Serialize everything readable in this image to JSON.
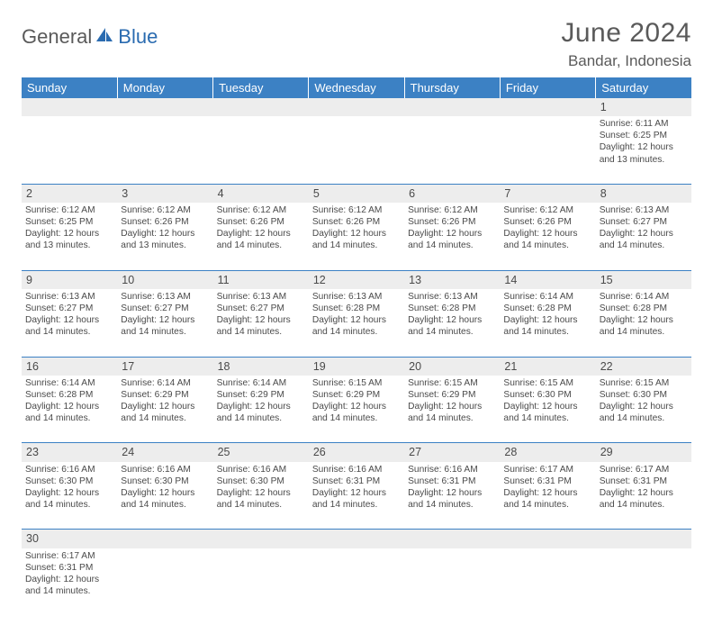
{
  "logo": {
    "part1": "General",
    "part2": "Blue"
  },
  "title": "June 2024",
  "location": "Bandar, Indonesia",
  "colors": {
    "header_bg": "#3c81c4",
    "header_text": "#ffffff",
    "daynum_bg": "#ededed",
    "text": "#4a4a4a",
    "logo_gray": "#5a5a5a",
    "logo_blue": "#2a6bb0",
    "row_divider": "#3c81c4",
    "page_bg": "#ffffff"
  },
  "typography": {
    "title_fontsize": 30,
    "location_fontsize": 17,
    "weekday_fontsize": 13,
    "daynum_fontsize": 12.5,
    "cell_fontsize": 10.2,
    "logo_fontsize": 22
  },
  "weekdays": [
    "Sunday",
    "Monday",
    "Tuesday",
    "Wednesday",
    "Thursday",
    "Friday",
    "Saturday"
  ],
  "weeks": [
    [
      null,
      null,
      null,
      null,
      null,
      null,
      {
        "n": "1",
        "sr": "Sunrise: 6:11 AM",
        "ss": "Sunset: 6:25 PM",
        "d1": "Daylight: 12 hours",
        "d2": "and 13 minutes."
      }
    ],
    [
      {
        "n": "2",
        "sr": "Sunrise: 6:12 AM",
        "ss": "Sunset: 6:25 PM",
        "d1": "Daylight: 12 hours",
        "d2": "and 13 minutes."
      },
      {
        "n": "3",
        "sr": "Sunrise: 6:12 AM",
        "ss": "Sunset: 6:26 PM",
        "d1": "Daylight: 12 hours",
        "d2": "and 13 minutes."
      },
      {
        "n": "4",
        "sr": "Sunrise: 6:12 AM",
        "ss": "Sunset: 6:26 PM",
        "d1": "Daylight: 12 hours",
        "d2": "and 14 minutes."
      },
      {
        "n": "5",
        "sr": "Sunrise: 6:12 AM",
        "ss": "Sunset: 6:26 PM",
        "d1": "Daylight: 12 hours",
        "d2": "and 14 minutes."
      },
      {
        "n": "6",
        "sr": "Sunrise: 6:12 AM",
        "ss": "Sunset: 6:26 PM",
        "d1": "Daylight: 12 hours",
        "d2": "and 14 minutes."
      },
      {
        "n": "7",
        "sr": "Sunrise: 6:12 AM",
        "ss": "Sunset: 6:26 PM",
        "d1": "Daylight: 12 hours",
        "d2": "and 14 minutes."
      },
      {
        "n": "8",
        "sr": "Sunrise: 6:13 AM",
        "ss": "Sunset: 6:27 PM",
        "d1": "Daylight: 12 hours",
        "d2": "and 14 minutes."
      }
    ],
    [
      {
        "n": "9",
        "sr": "Sunrise: 6:13 AM",
        "ss": "Sunset: 6:27 PM",
        "d1": "Daylight: 12 hours",
        "d2": "and 14 minutes."
      },
      {
        "n": "10",
        "sr": "Sunrise: 6:13 AM",
        "ss": "Sunset: 6:27 PM",
        "d1": "Daylight: 12 hours",
        "d2": "and 14 minutes."
      },
      {
        "n": "11",
        "sr": "Sunrise: 6:13 AM",
        "ss": "Sunset: 6:27 PM",
        "d1": "Daylight: 12 hours",
        "d2": "and 14 minutes."
      },
      {
        "n": "12",
        "sr": "Sunrise: 6:13 AM",
        "ss": "Sunset: 6:28 PM",
        "d1": "Daylight: 12 hours",
        "d2": "and 14 minutes."
      },
      {
        "n": "13",
        "sr": "Sunrise: 6:13 AM",
        "ss": "Sunset: 6:28 PM",
        "d1": "Daylight: 12 hours",
        "d2": "and 14 minutes."
      },
      {
        "n": "14",
        "sr": "Sunrise: 6:14 AM",
        "ss": "Sunset: 6:28 PM",
        "d1": "Daylight: 12 hours",
        "d2": "and 14 minutes."
      },
      {
        "n": "15",
        "sr": "Sunrise: 6:14 AM",
        "ss": "Sunset: 6:28 PM",
        "d1": "Daylight: 12 hours",
        "d2": "and 14 minutes."
      }
    ],
    [
      {
        "n": "16",
        "sr": "Sunrise: 6:14 AM",
        "ss": "Sunset: 6:28 PM",
        "d1": "Daylight: 12 hours",
        "d2": "and 14 minutes."
      },
      {
        "n": "17",
        "sr": "Sunrise: 6:14 AM",
        "ss": "Sunset: 6:29 PM",
        "d1": "Daylight: 12 hours",
        "d2": "and 14 minutes."
      },
      {
        "n": "18",
        "sr": "Sunrise: 6:14 AM",
        "ss": "Sunset: 6:29 PM",
        "d1": "Daylight: 12 hours",
        "d2": "and 14 minutes."
      },
      {
        "n": "19",
        "sr": "Sunrise: 6:15 AM",
        "ss": "Sunset: 6:29 PM",
        "d1": "Daylight: 12 hours",
        "d2": "and 14 minutes."
      },
      {
        "n": "20",
        "sr": "Sunrise: 6:15 AM",
        "ss": "Sunset: 6:29 PM",
        "d1": "Daylight: 12 hours",
        "d2": "and 14 minutes."
      },
      {
        "n": "21",
        "sr": "Sunrise: 6:15 AM",
        "ss": "Sunset: 6:30 PM",
        "d1": "Daylight: 12 hours",
        "d2": "and 14 minutes."
      },
      {
        "n": "22",
        "sr": "Sunrise: 6:15 AM",
        "ss": "Sunset: 6:30 PM",
        "d1": "Daylight: 12 hours",
        "d2": "and 14 minutes."
      }
    ],
    [
      {
        "n": "23",
        "sr": "Sunrise: 6:16 AM",
        "ss": "Sunset: 6:30 PM",
        "d1": "Daylight: 12 hours",
        "d2": "and 14 minutes."
      },
      {
        "n": "24",
        "sr": "Sunrise: 6:16 AM",
        "ss": "Sunset: 6:30 PM",
        "d1": "Daylight: 12 hours",
        "d2": "and 14 minutes."
      },
      {
        "n": "25",
        "sr": "Sunrise: 6:16 AM",
        "ss": "Sunset: 6:30 PM",
        "d1": "Daylight: 12 hours",
        "d2": "and 14 minutes."
      },
      {
        "n": "26",
        "sr": "Sunrise: 6:16 AM",
        "ss": "Sunset: 6:31 PM",
        "d1": "Daylight: 12 hours",
        "d2": "and 14 minutes."
      },
      {
        "n": "27",
        "sr": "Sunrise: 6:16 AM",
        "ss": "Sunset: 6:31 PM",
        "d1": "Daylight: 12 hours",
        "d2": "and 14 minutes."
      },
      {
        "n": "28",
        "sr": "Sunrise: 6:17 AM",
        "ss": "Sunset: 6:31 PM",
        "d1": "Daylight: 12 hours",
        "d2": "and 14 minutes."
      },
      {
        "n": "29",
        "sr": "Sunrise: 6:17 AM",
        "ss": "Sunset: 6:31 PM",
        "d1": "Daylight: 12 hours",
        "d2": "and 14 minutes."
      }
    ],
    [
      {
        "n": "30",
        "sr": "Sunrise: 6:17 AM",
        "ss": "Sunset: 6:31 PM",
        "d1": "Daylight: 12 hours",
        "d2": "and 14 minutes."
      },
      null,
      null,
      null,
      null,
      null,
      null
    ]
  ]
}
